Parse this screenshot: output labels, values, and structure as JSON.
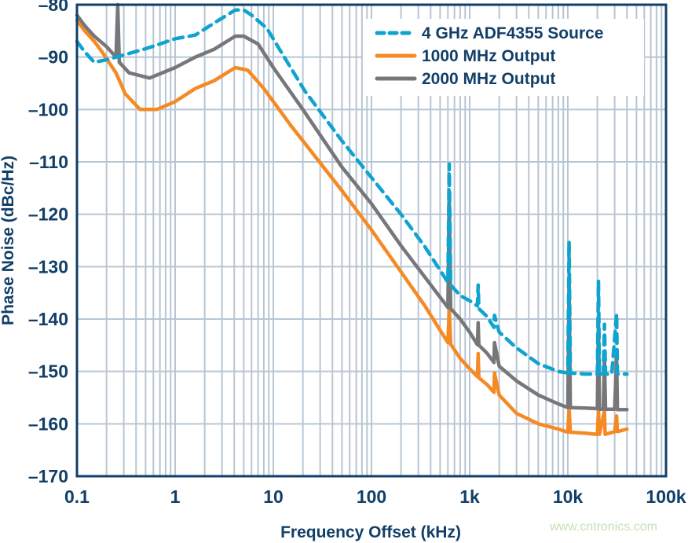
{
  "chart_data": {
    "type": "line",
    "title": "",
    "xlabel": "Frequency Offset (kHz)",
    "ylabel": "Phase Noise (dBc/Hz)",
    "xscale": "log",
    "xlim": [
      0.1,
      100000
    ],
    "ylim": [
      -170,
      -80
    ],
    "grid": true,
    "legend_position": "top-right",
    "x_tick_labels": [
      "0.1",
      "1",
      "10",
      "100",
      "1k",
      "10k",
      "100k"
    ],
    "x_tick_values": [
      0.1,
      1,
      10,
      100,
      1000,
      10000,
      100000
    ],
    "y_tick_labels": [
      "–80",
      "–90",
      "–100",
      "–110",
      "–120",
      "–130",
      "–140",
      "–150",
      "–160",
      "–170"
    ],
    "y_tick_values": [
      -80,
      -90,
      -100,
      -110,
      -120,
      -130,
      -140,
      -150,
      -160,
      -170
    ],
    "colors": {
      "grid": "#b8c6d3",
      "frame": "#123f68"
    },
    "series": [
      {
        "name": "4 GHz ADF4355 Source",
        "color": "#0fa3cf",
        "dash": "dashed",
        "x": [
          0.1,
          0.12,
          0.15,
          0.2,
          0.3,
          0.5,
          0.7,
          1,
          1.6,
          2.5,
          4.1,
          5,
          6,
          8.6,
          12,
          21,
          50,
          100,
          200,
          350,
          600,
          620,
          640,
          800,
          1000,
          1200,
          1220,
          1240,
          1500,
          1770,
          1790,
          2000,
          3000,
          5000,
          8000,
          10000,
          10300,
          10600,
          15000,
          20000,
          20500,
          21000,
          23000,
          23600,
          24200,
          28000,
          31400,
          32000,
          40000
        ],
        "y": [
          -87,
          -89,
          -91,
          -90.5,
          -89.6,
          -88.4,
          -87.5,
          -86.5,
          -85.8,
          -83.5,
          -81,
          -81,
          -82,
          -84.5,
          -89,
          -96.5,
          -106,
          -113,
          -120,
          -126.2,
          -133,
          -110.4,
          -133.5,
          -135.5,
          -136.5,
          -137.5,
          -133.5,
          -138,
          -139.5,
          -141.6,
          -139.3,
          -142.5,
          -145.5,
          -148.5,
          -150,
          -150.3,
          -125.2,
          -150.3,
          -150.5,
          -150.5,
          -132.7,
          -150.5,
          -150.5,
          -141,
          -150.5,
          -150.5,
          -139,
          -150.5,
          -150.5
        ]
      },
      {
        "name": "1000 MHz Output",
        "color": "#f58a25",
        "dash": "solid",
        "x": [
          0.1,
          0.12,
          0.15,
          0.18,
          0.25,
          0.31,
          0.44,
          0.65,
          1,
          1.6,
          2.5,
          4.1,
          5.5,
          8,
          15,
          50,
          100,
          200,
          350,
          600,
          620,
          640,
          800,
          1000,
          1200,
          1220,
          1240,
          1500,
          1770,
          1790,
          2000,
          3000,
          5000,
          8000,
          10000,
          10300,
          10600,
          15000,
          20000,
          20500,
          21000,
          23600,
          24000,
          30000,
          31400,
          32000,
          40000
        ],
        "y": [
          -83,
          -85,
          -87,
          -89,
          -93,
          -97,
          -100,
          -100,
          -98.5,
          -96,
          -94.5,
          -92,
          -92.5,
          -96,
          -103,
          -115.5,
          -123,
          -131,
          -137.5,
          -144.5,
          -138,
          -144.8,
          -147.5,
          -149.5,
          -151,
          -146.6,
          -151.2,
          -152.5,
          -154,
          -150.3,
          -154.5,
          -158,
          -160,
          -161,
          -161.6,
          -156.9,
          -161.6,
          -161.8,
          -162,
          -157.5,
          -162,
          -157.5,
          -162,
          -161.5,
          -158.5,
          -161.5,
          -161
        ]
      },
      {
        "name": "2000 MHz Output",
        "color": "#77777a",
        "dash": "solid",
        "x": [
          0.1,
          0.12,
          0.15,
          0.2,
          0.25,
          0.26,
          0.27,
          0.34,
          0.55,
          1,
          1.6,
          2.5,
          4.1,
          5,
          7,
          10,
          20,
          50,
          100,
          200,
          350,
          600,
          620,
          640,
          800,
          1000,
          1200,
          1220,
          1240,
          1500,
          1770,
          1790,
          2000,
          3000,
          5000,
          8000,
          10000,
          10300,
          10600,
          15000,
          20000,
          20500,
          21000,
          23000,
          23600,
          24200,
          30000,
          31400,
          32000,
          40000
        ],
        "y": [
          -82,
          -84,
          -86,
          -88,
          -90,
          -80,
          -91,
          -93,
          -94,
          -92,
          -90,
          -88.5,
          -86,
          -86,
          -87.5,
          -92,
          -100,
          -111,
          -118,
          -126,
          -132,
          -137.8,
          -116.4,
          -138,
          -140,
          -142.5,
          -144.9,
          -140.7,
          -145,
          -146.5,
          -148.3,
          -144.5,
          -149,
          -151.8,
          -154.5,
          -156.2,
          -156.9,
          -132.8,
          -156.9,
          -157,
          -157.1,
          -140,
          -157.2,
          -157.2,
          -147.3,
          -157.2,
          -157.2,
          -147,
          -157.3,
          -157.3
        ]
      }
    ]
  },
  "watermark": "www.cntronics.com"
}
